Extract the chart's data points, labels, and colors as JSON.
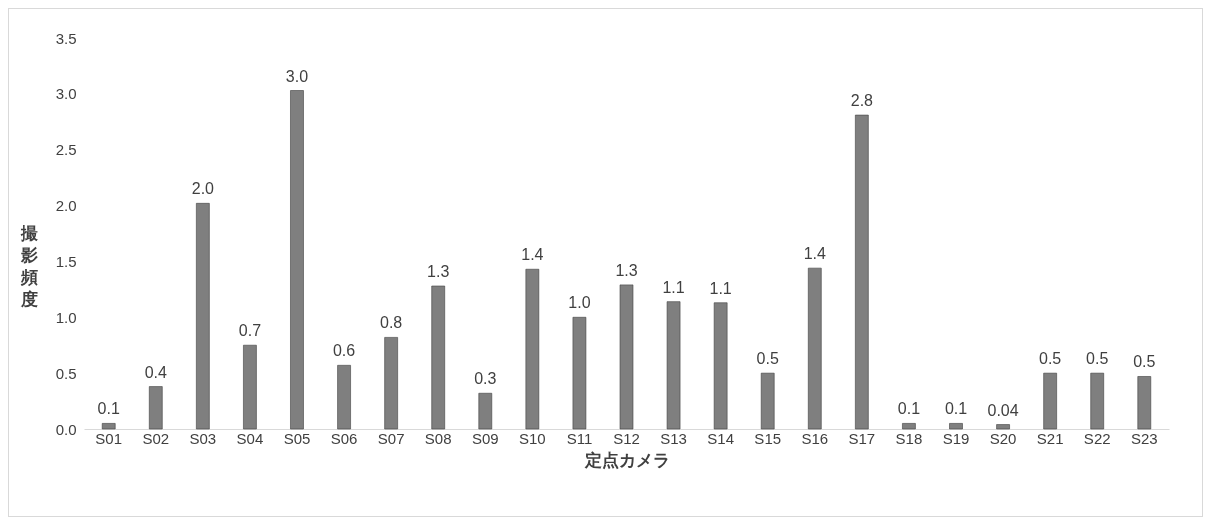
{
  "chart_data": {
    "type": "bar",
    "xlabel": "定点カメラ",
    "ylabel": "撮影頻度",
    "categories": [
      "S01",
      "S02",
      "S03",
      "S04",
      "S05",
      "S06",
      "S07",
      "S08",
      "S09",
      "S10",
      "S11",
      "S12",
      "S13",
      "S14",
      "S15",
      "S16",
      "S17",
      "S18",
      "S19",
      "S20",
      "S21",
      "S22",
      "S23"
    ],
    "values": [
      0.05,
      0.38,
      2.02,
      0.75,
      3.03,
      0.57,
      0.82,
      1.28,
      0.32,
      1.43,
      1.0,
      1.29,
      1.14,
      1.13,
      0.5,
      1.44,
      2.81,
      0.05,
      0.05,
      0.04,
      0.5,
      0.5,
      0.47
    ],
    "value_labels": [
      "0.1",
      "0.4",
      "2.0",
      "0.7",
      "3.0",
      "0.6",
      "0.8",
      "1.3",
      "0.3",
      "1.4",
      "1.0",
      "1.3",
      "1.1",
      "1.1",
      "0.5",
      "1.4",
      "2.8",
      "0.1",
      "0.1",
      "0.04",
      "0.5",
      "0.5",
      "0.5"
    ],
    "color": "#7f7f7f",
    "ylim": [
      0,
      3.5
    ],
    "yticks": [
      {
        "value": 0,
        "label": "0.0"
      },
      {
        "value": 0.5,
        "label": "0.5"
      },
      {
        "value": 1,
        "label": "1.0"
      },
      {
        "value": 1.5,
        "label": "1.5"
      },
      {
        "value": 2,
        "label": "2.0"
      },
      {
        "value": 2.5,
        "label": "2.5"
      },
      {
        "value": 3,
        "label": "3.0"
      },
      {
        "value": 3.5,
        "label": "3.5"
      }
    ],
    "grid": false
  }
}
